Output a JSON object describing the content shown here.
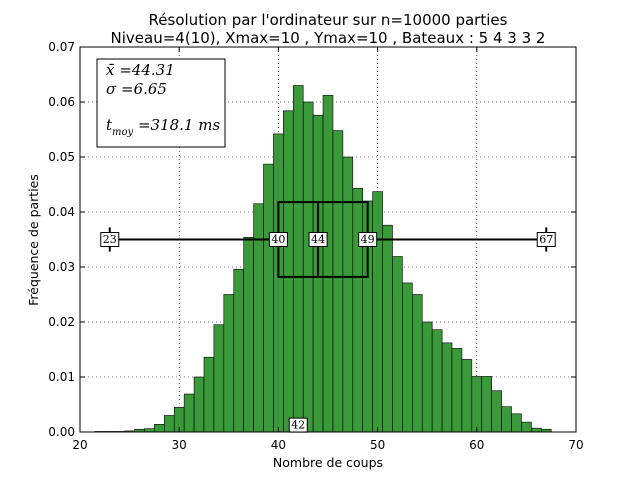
{
  "chart_data": {
    "type": "bar",
    "title": "Résolution par l'ordinateur sur n=10000 parties",
    "subtitle": "Niveau=4(10), Xmax=10 , Ymax=10 , Bateaux : 5 4 3 3 2",
    "xlabel": "Nombre de coups",
    "ylabel": "Fréquence de parties",
    "xlim": [
      20,
      70
    ],
    "ylim": [
      0,
      0.07
    ],
    "xticks": [
      "20",
      "30",
      "40",
      "50",
      "60",
      "70"
    ],
    "yticks": [
      "0.00",
      "0.01",
      "0.02",
      "0.03",
      "0.04",
      "0.05",
      "0.06",
      "0.07"
    ],
    "grid": true,
    "bar_color": "#3a9a3a",
    "x": [
      22,
      23,
      24,
      25,
      26,
      27,
      28,
      29,
      30,
      31,
      32,
      33,
      34,
      35,
      36,
      37,
      38,
      39,
      40,
      41,
      42,
      43,
      44,
      45,
      46,
      47,
      48,
      49,
      50,
      51,
      52,
      53,
      54,
      55,
      56,
      57,
      58,
      59,
      60,
      61,
      62,
      63,
      64,
      65,
      66,
      67
    ],
    "values": [
      0.0001,
      0.0001,
      0.0001,
      0.0002,
      0.0005,
      0.0006,
      0.0014,
      0.003,
      0.0045,
      0.0069,
      0.01,
      0.0136,
      0.0195,
      0.025,
      0.0296,
      0.0354,
      0.0415,
      0.0487,
      0.0542,
      0.0584,
      0.063,
      0.06,
      0.0576,
      0.0612,
      0.0548,
      0.05,
      0.0443,
      0.042,
      0.0437,
      0.0376,
      0.0319,
      0.0271,
      0.025,
      0.02,
      0.0186,
      0.0162,
      0.0152,
      0.0132,
      0.0101,
      0.0101,
      0.0075,
      0.0046,
      0.0033,
      0.0018,
      0.0007,
      0.0005
    ],
    "boxplot": {
      "min": 23,
      "q1": 40,
      "median": 44,
      "q3": 49,
      "max": 67,
      "y": 0.035,
      "box_bottom": 0.0282,
      "box_top": 0.0418,
      "whisker_cap_half": 0.0022,
      "labels": [
        "23",
        "40",
        "44",
        "49",
        "67"
      ]
    },
    "mode_label": {
      "x": 42,
      "y": 0.00125,
      "text": "42"
    },
    "stats": {
      "mean_label": "x̄ =44.31",
      "sigma_label": "σ =6.65",
      "time_label": "t",
      "time_sub": "moy",
      "time_value": " =318.1 ms"
    }
  }
}
